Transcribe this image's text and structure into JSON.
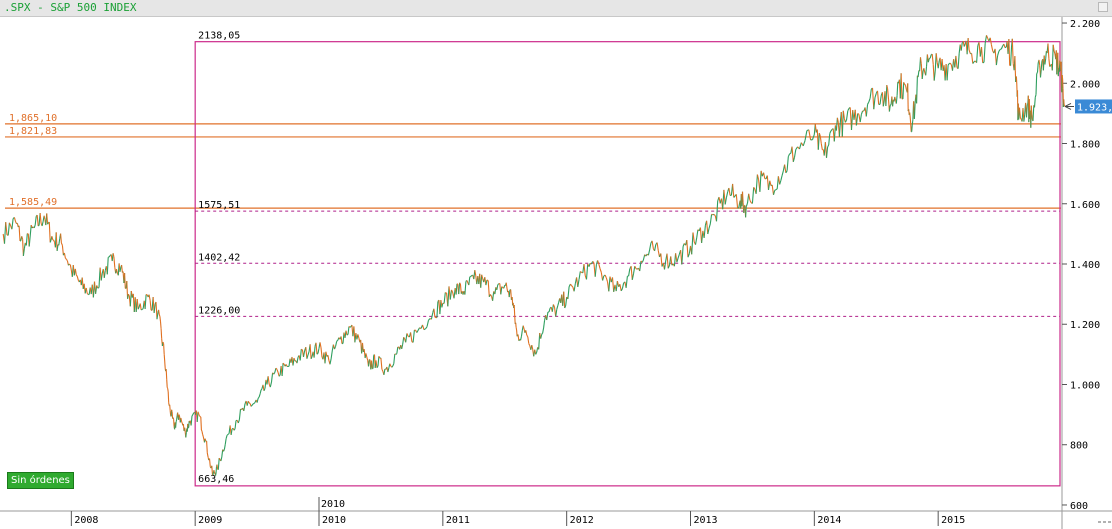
{
  "window": {
    "title": ".SPX - S&P 500 INDEX"
  },
  "orders_button": {
    "label": "Sin órdenes"
  },
  "colors": {
    "up": "#2e9e5e",
    "down": "#e07020",
    "horizontal_line": "#e0702a",
    "fib_box": "#cc2a8a",
    "fib_dash": "#b0208a",
    "last_price_bg": "#3a8ad6"
  },
  "chart_data": {
    "type": "line",
    "title": ".SPX - S&P 500 INDEX",
    "ylim": [
      580,
      2220
    ],
    "y_ticks": [
      600,
      800,
      1000,
      1200,
      1400,
      1600,
      1800,
      2000,
      2200
    ],
    "y_tick_labels": [
      "600",
      "800",
      "1.000",
      "1.200",
      "1.400",
      "1.600",
      "1.800",
      "2.000",
      "2.200"
    ],
    "x_range": [
      2007.44,
      2016.0
    ],
    "x_ticks": [
      2008,
      2009,
      2010,
      2011,
      2012,
      2013,
      2014,
      2015
    ],
    "x_tick_labels": [
      "2008",
      "2009",
      "2010",
      "2011",
      "2012",
      "2013",
      "2014",
      "2015"
    ],
    "x_floating_label": {
      "x": 2010.0,
      "label": "2010"
    },
    "grid": false,
    "horizontal_levels": [
      {
        "value": 1865.1,
        "label": "1,865,10"
      },
      {
        "value": 1821.83,
        "label": "1,821,83"
      },
      {
        "value": 1585.49,
        "label": "1,585,49"
      }
    ],
    "fib_box": {
      "x_start": 2009.0,
      "high": 2138.05,
      "low": 663.46,
      "high_label": "2138,05",
      "low_label": "663,46"
    },
    "fib_levels": [
      {
        "value": 1575.51,
        "label": "1575,51"
      },
      {
        "value": 1402.42,
        "label": "1402,42"
      },
      {
        "value": 1226.0,
        "label": "1226,00"
      }
    ],
    "last_price": {
      "value": 1923,
      "label": "1.923,"
    },
    "series": [
      {
        "values": [
          [
            2007.45,
            1500
          ],
          [
            2007.55,
            1540
          ],
          [
            2007.62,
            1450
          ],
          [
            2007.7,
            1520
          ],
          [
            2007.78,
            1560
          ],
          [
            2007.85,
            1480
          ],
          [
            2007.92,
            1470
          ],
          [
            2008.0,
            1380
          ],
          [
            2008.08,
            1330
          ],
          [
            2008.16,
            1300
          ],
          [
            2008.25,
            1370
          ],
          [
            2008.33,
            1410
          ],
          [
            2008.4,
            1390
          ],
          [
            2008.46,
            1300
          ],
          [
            2008.54,
            1250
          ],
          [
            2008.62,
            1290
          ],
          [
            2008.7,
            1240
          ],
          [
            2008.75,
            1100
          ],
          [
            2008.79,
            930
          ],
          [
            2008.83,
            860
          ],
          [
            2008.87,
            900
          ],
          [
            2008.92,
            840
          ],
          [
            2008.96,
            880
          ],
          [
            2009.03,
            900
          ],
          [
            2009.08,
            820
          ],
          [
            2009.14,
            700
          ],
          [
            2009.18,
            720
          ],
          [
            2009.25,
            820
          ],
          [
            2009.33,
            880
          ],
          [
            2009.42,
            930
          ],
          [
            2009.5,
            940
          ],
          [
            2009.58,
            1000
          ],
          [
            2009.67,
            1040
          ],
          [
            2009.75,
            1060
          ],
          [
            2009.83,
            1090
          ],
          [
            2009.92,
            1110
          ],
          [
            2010.0,
            1120
          ],
          [
            2010.08,
            1080
          ],
          [
            2010.17,
            1150
          ],
          [
            2010.25,
            1190
          ],
          [
            2010.33,
            1140
          ],
          [
            2010.4,
            1060
          ],
          [
            2010.46,
            1080
          ],
          [
            2010.54,
            1050
          ],
          [
            2010.62,
            1100
          ],
          [
            2010.7,
            1140
          ],
          [
            2010.8,
            1180
          ],
          [
            2010.92,
            1240
          ],
          [
            2011.0,
            1270
          ],
          [
            2011.1,
            1320
          ],
          [
            2011.17,
            1310
          ],
          [
            2011.25,
            1350
          ],
          [
            2011.33,
            1340
          ],
          [
            2011.42,
            1300
          ],
          [
            2011.5,
            1330
          ],
          [
            2011.56,
            1290
          ],
          [
            2011.6,
            1160
          ],
          [
            2011.67,
            1180
          ],
          [
            2011.75,
            1100
          ],
          [
            2011.83,
            1230
          ],
          [
            2011.92,
            1250
          ],
          [
            2012.0,
            1290
          ],
          [
            2012.1,
            1350
          ],
          [
            2012.2,
            1400
          ],
          [
            2012.3,
            1360
          ],
          [
            2012.4,
            1310
          ],
          [
            2012.5,
            1360
          ],
          [
            2012.6,
            1410
          ],
          [
            2012.7,
            1450
          ],
          [
            2012.8,
            1410
          ],
          [
            2012.9,
            1420
          ],
          [
            2013.0,
            1460
          ],
          [
            2013.1,
            1510
          ],
          [
            2013.2,
            1560
          ],
          [
            2013.3,
            1640
          ],
          [
            2013.4,
            1610
          ],
          [
            2013.45,
            1590
          ],
          [
            2013.55,
            1680
          ],
          [
            2013.65,
            1660
          ],
          [
            2013.75,
            1710
          ],
          [
            2013.85,
            1780
          ],
          [
            2014.0,
            1830
          ],
          [
            2014.08,
            1760
          ],
          [
            2014.17,
            1860
          ],
          [
            2014.25,
            1870
          ],
          [
            2014.35,
            1900
          ],
          [
            2014.45,
            1950
          ],
          [
            2014.55,
            1970
          ],
          [
            2014.62,
            1930
          ],
          [
            2014.68,
            2000
          ],
          [
            2014.75,
            1970
          ],
          [
            2014.79,
            1860
          ],
          [
            2014.85,
            2040
          ],
          [
            2014.92,
            2070
          ],
          [
            2015.0,
            2050
          ],
          [
            2015.08,
            2060
          ],
          [
            2015.17,
            2100
          ],
          [
            2015.25,
            2110
          ],
          [
            2015.35,
            2120
          ],
          [
            2015.45,
            2100
          ],
          [
            2015.55,
            2120
          ],
          [
            2015.62,
            2090
          ],
          [
            2015.65,
            1880
          ],
          [
            2015.72,
            1930
          ],
          [
            2015.76,
            1880
          ],
          [
            2015.82,
            2060
          ],
          [
            2015.88,
            2100
          ],
          [
            2015.95,
            2080
          ],
          [
            2015.99,
            2040
          ],
          [
            2016.02,
            1923
          ]
        ]
      }
    ]
  }
}
